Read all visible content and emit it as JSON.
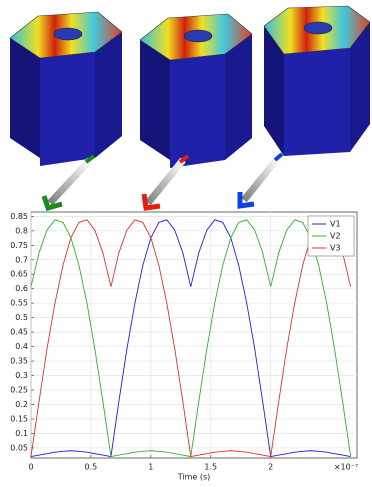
{
  "chart_data": {
    "type": "line",
    "x_label": "Time (s)",
    "x_multiplier": "×10⁻⁷",
    "x": [
      0,
      0.067,
      0.133,
      0.2,
      0.267,
      0.333,
      0.4,
      0.467,
      0.533,
      0.6,
      0.667,
      0.733,
      0.8,
      0.867,
      0.933,
      1,
      1.067,
      1.133,
      1.2,
      1.267,
      1.333,
      1.4,
      1.467,
      1.533,
      1.6,
      1.667,
      1.733,
      1.8,
      1.867,
      1.933,
      2,
      2.067,
      2.133,
      2.2,
      2.267,
      2.333,
      2.4,
      2.467,
      2.533,
      2.6,
      2.667
    ],
    "series": [
      {
        "name": "V1",
        "color": "#2020d0",
        "values": [
          0.02,
          0.025,
          0.03,
          0.035,
          0.038,
          0.04,
          0.038,
          0.035,
          0.03,
          0.025,
          0.02,
          0.21,
          0.391,
          0.55,
          0.681,
          0.776,
          0.829,
          0.838,
          0.802,
          0.724,
          0.607,
          0.724,
          0.802,
          0.838,
          0.829,
          0.776,
          0.681,
          0.55,
          0.391,
          0.21,
          0.02,
          0.025,
          0.03,
          0.035,
          0.038,
          0.04,
          0.038,
          0.035,
          0.03,
          0.025,
          0.02
        ]
      },
      {
        "name": "V2",
        "color": "#30b030",
        "values": [
          0.607,
          0.724,
          0.802,
          0.838,
          0.829,
          0.776,
          0.681,
          0.55,
          0.391,
          0.21,
          0.02,
          0.025,
          0.03,
          0.035,
          0.038,
          0.04,
          0.038,
          0.035,
          0.03,
          0.025,
          0.02,
          0.21,
          0.391,
          0.55,
          0.681,
          0.776,
          0.829,
          0.838,
          0.802,
          0.724,
          0.607,
          0.724,
          0.802,
          0.838,
          0.829,
          0.776,
          0.681,
          0.55,
          0.391,
          0.21,
          0.02
        ]
      },
      {
        "name": "V3",
        "color": "#e03030",
        "values": [
          0.02,
          0.21,
          0.391,
          0.55,
          0.681,
          0.776,
          0.829,
          0.838,
          0.802,
          0.724,
          0.607,
          0.724,
          0.802,
          0.838,
          0.829,
          0.776,
          0.681,
          0.55,
          0.391,
          0.21,
          0.02,
          0.025,
          0.03,
          0.035,
          0.038,
          0.04,
          0.038,
          0.035,
          0.03,
          0.025,
          0.02,
          0.21,
          0.391,
          0.55,
          0.681,
          0.776,
          0.829,
          0.838,
          0.802,
          0.724,
          0.607
        ]
      }
    ],
    "xlim": [
      0,
      2.72
    ],
    "xticks": [
      0,
      0.5,
      1,
      1.5,
      2
    ],
    "ylim": [
      0.015,
      0.865
    ],
    "yticks": [
      0.05,
      0.1,
      0.15,
      0.2,
      0.25,
      0.3,
      0.35,
      0.4,
      0.45,
      0.5,
      0.55,
      0.6,
      0.65,
      0.7,
      0.75,
      0.8,
      0.85
    ],
    "grid": true,
    "legend": "top-right"
  }
}
